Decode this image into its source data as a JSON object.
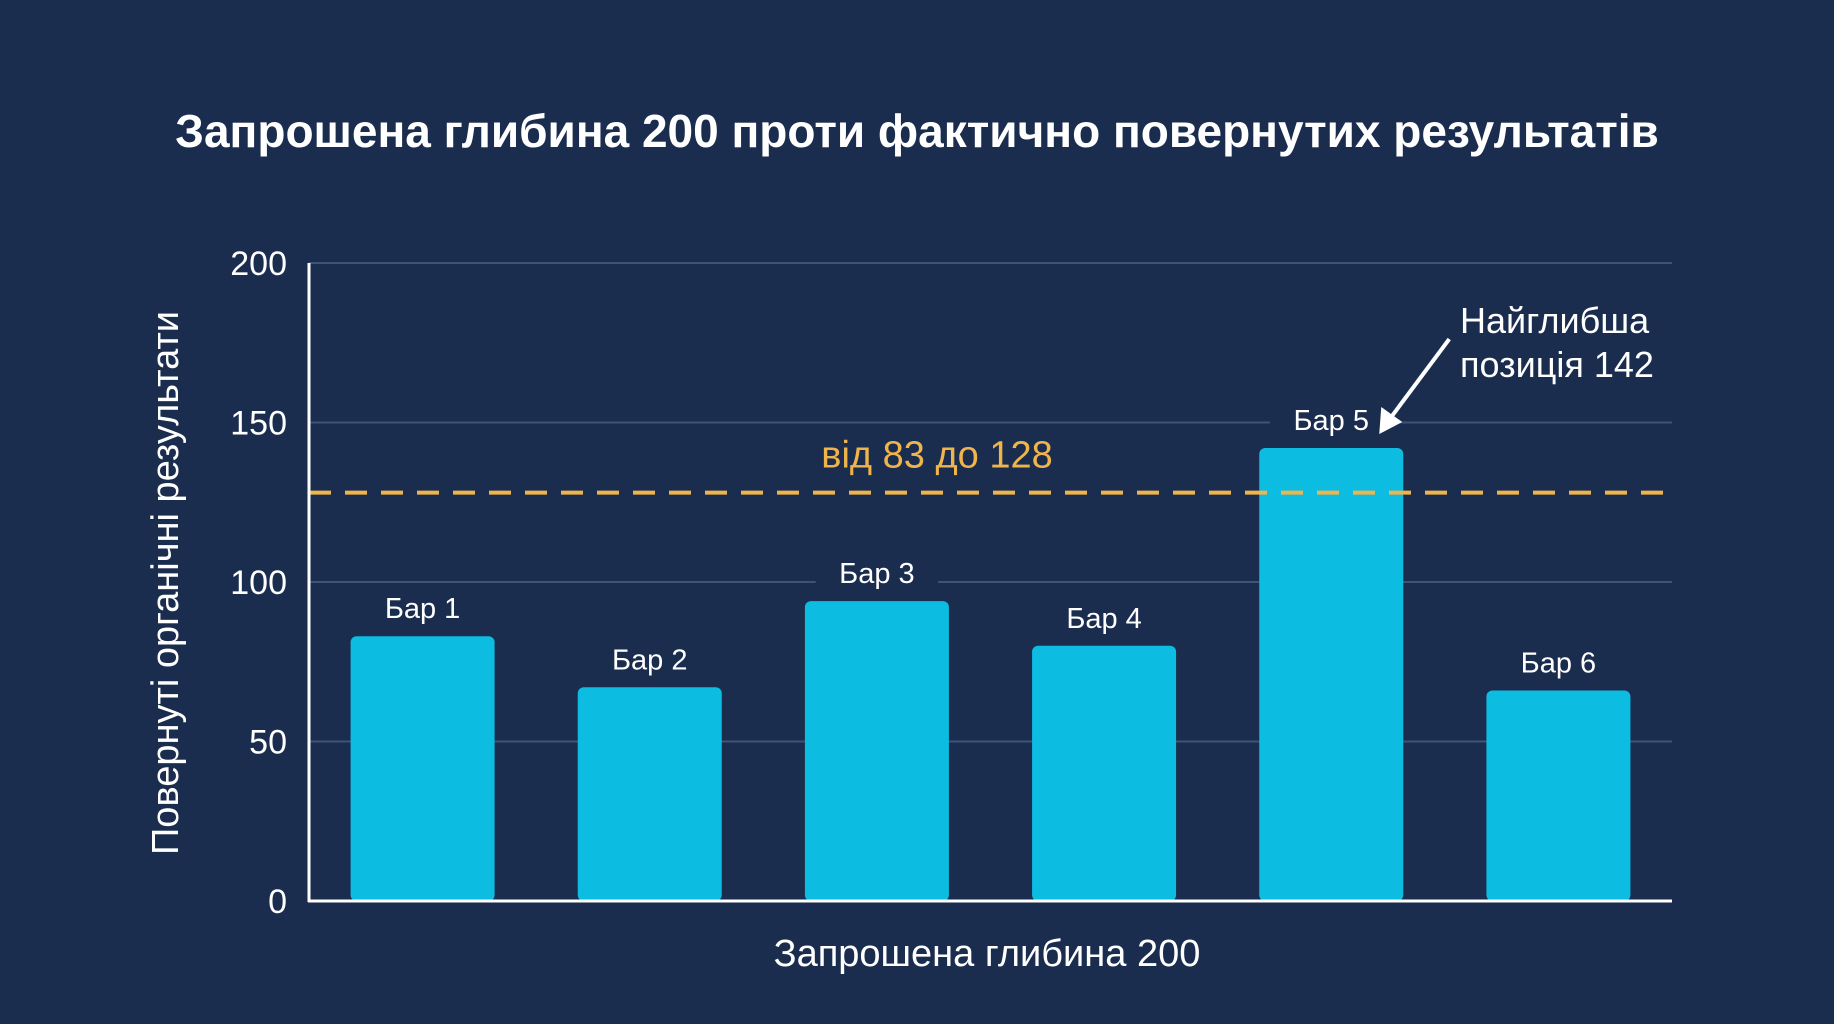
{
  "chart_data": {
    "type": "bar",
    "title": "Запрошена глибина 200 проти фактично повернутих результатів",
    "xlabel": "Запрошена глибина 200",
    "ylabel": "Повернуті органічні результати",
    "ylim": [
      0,
      200
    ],
    "yticks": [
      0,
      50,
      100,
      150,
      200
    ],
    "grid": true,
    "categories": [
      "Бар 1",
      "Бар 2",
      "Бар 3",
      "Бар 4",
      "Бар 5",
      "Бар 6"
    ],
    "values": [
      83,
      67,
      94,
      80,
      142,
      66
    ],
    "reference_line": {
      "value": 128,
      "label": "від 83 до 128",
      "style": "dashed",
      "color": "#f0b44c"
    },
    "annotation": {
      "lines": [
        "Найглибша",
        "позиція 142"
      ],
      "target_category": "Бар 5"
    },
    "colors": {
      "background": "#1b2d4e",
      "bar": "#0dbde1",
      "grid": "#3c5478",
      "axis": "#ffffff",
      "text": "#ffffff",
      "reference": "#f0b44c"
    }
  }
}
